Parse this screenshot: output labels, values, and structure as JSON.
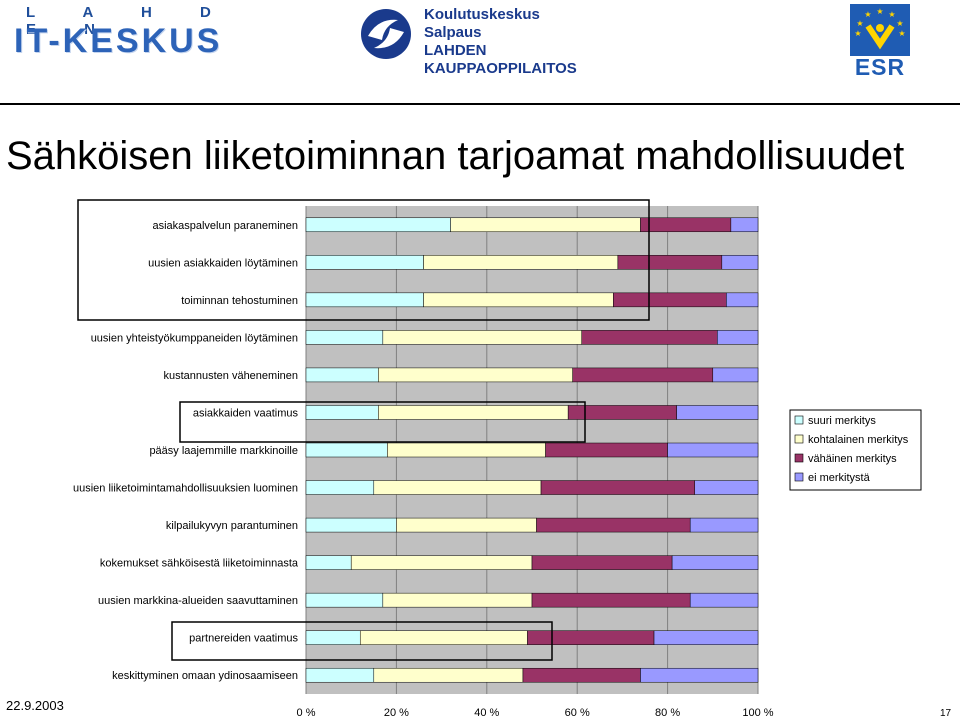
{
  "header": {
    "itk_logo_top": "L A H D E N",
    "itk_logo_main": "IT-KESKUS",
    "salpaus_lines": [
      "Koulutuskeskus Salpaus",
      "LAHDEN",
      "KAUPPAOPPILAITOS"
    ],
    "esr_label": "ESR"
  },
  "slide": {
    "title": "Sähköisen liiketoiminnan tarjoamat mahdollisuudet",
    "date": "22.9.2003",
    "page": "17"
  },
  "colors": {
    "suuri": "#ccffff",
    "kohtalainen": "#ffffcc",
    "vahainen": "#993366",
    "ei": "#9999ff",
    "plot_bg": "#c0c0c0"
  },
  "chart_data": {
    "type": "bar",
    "orientation": "horizontal",
    "stacked": "percent",
    "categories": [
      "asiakaspalvelun paraneminen",
      "uusien asiakkaiden löytäminen",
      "toiminnan tehostuminen",
      "uusien yhteistyökumppaneiden löytäminen",
      "kustannusten väheneminen",
      "asiakkaiden vaatimus",
      "pääsy laajemmille markkinoille",
      "uusien liiketoimintamahdollisuuksien luominen",
      "kilpailukyvyn parantuminen",
      "kokemukset sähköisestä liiketoiminnasta",
      "uusien markkina-alueiden saavuttaminen",
      "partnereiden vaatimus",
      "keskittyminen omaan ydinosaamiseen"
    ],
    "series": [
      {
        "name": "suuri merkitys",
        "values": [
          32,
          26,
          26,
          17,
          16,
          16,
          18,
          15,
          20,
          10,
          17,
          12,
          15
        ]
      },
      {
        "name": "kohtalainen merkitys",
        "values": [
          42,
          43,
          42,
          44,
          43,
          42,
          35,
          37,
          31,
          40,
          33,
          37,
          33
        ]
      },
      {
        "name": "vähäinen merkitys",
        "values": [
          20,
          23,
          25,
          30,
          31,
          24,
          27,
          34,
          34,
          31,
          35,
          28,
          26
        ]
      },
      {
        "name": "ei merkitystä",
        "values": [
          6,
          8,
          7,
          9,
          10,
          18,
          20,
          14,
          15,
          19,
          15,
          23,
          26
        ]
      }
    ],
    "xticks": [
      "0 %",
      "20 %",
      "40 %",
      "60 %",
      "80 %",
      "100 %"
    ],
    "xlim": [
      0,
      100
    ],
    "grid": true,
    "legend_position": "right"
  }
}
